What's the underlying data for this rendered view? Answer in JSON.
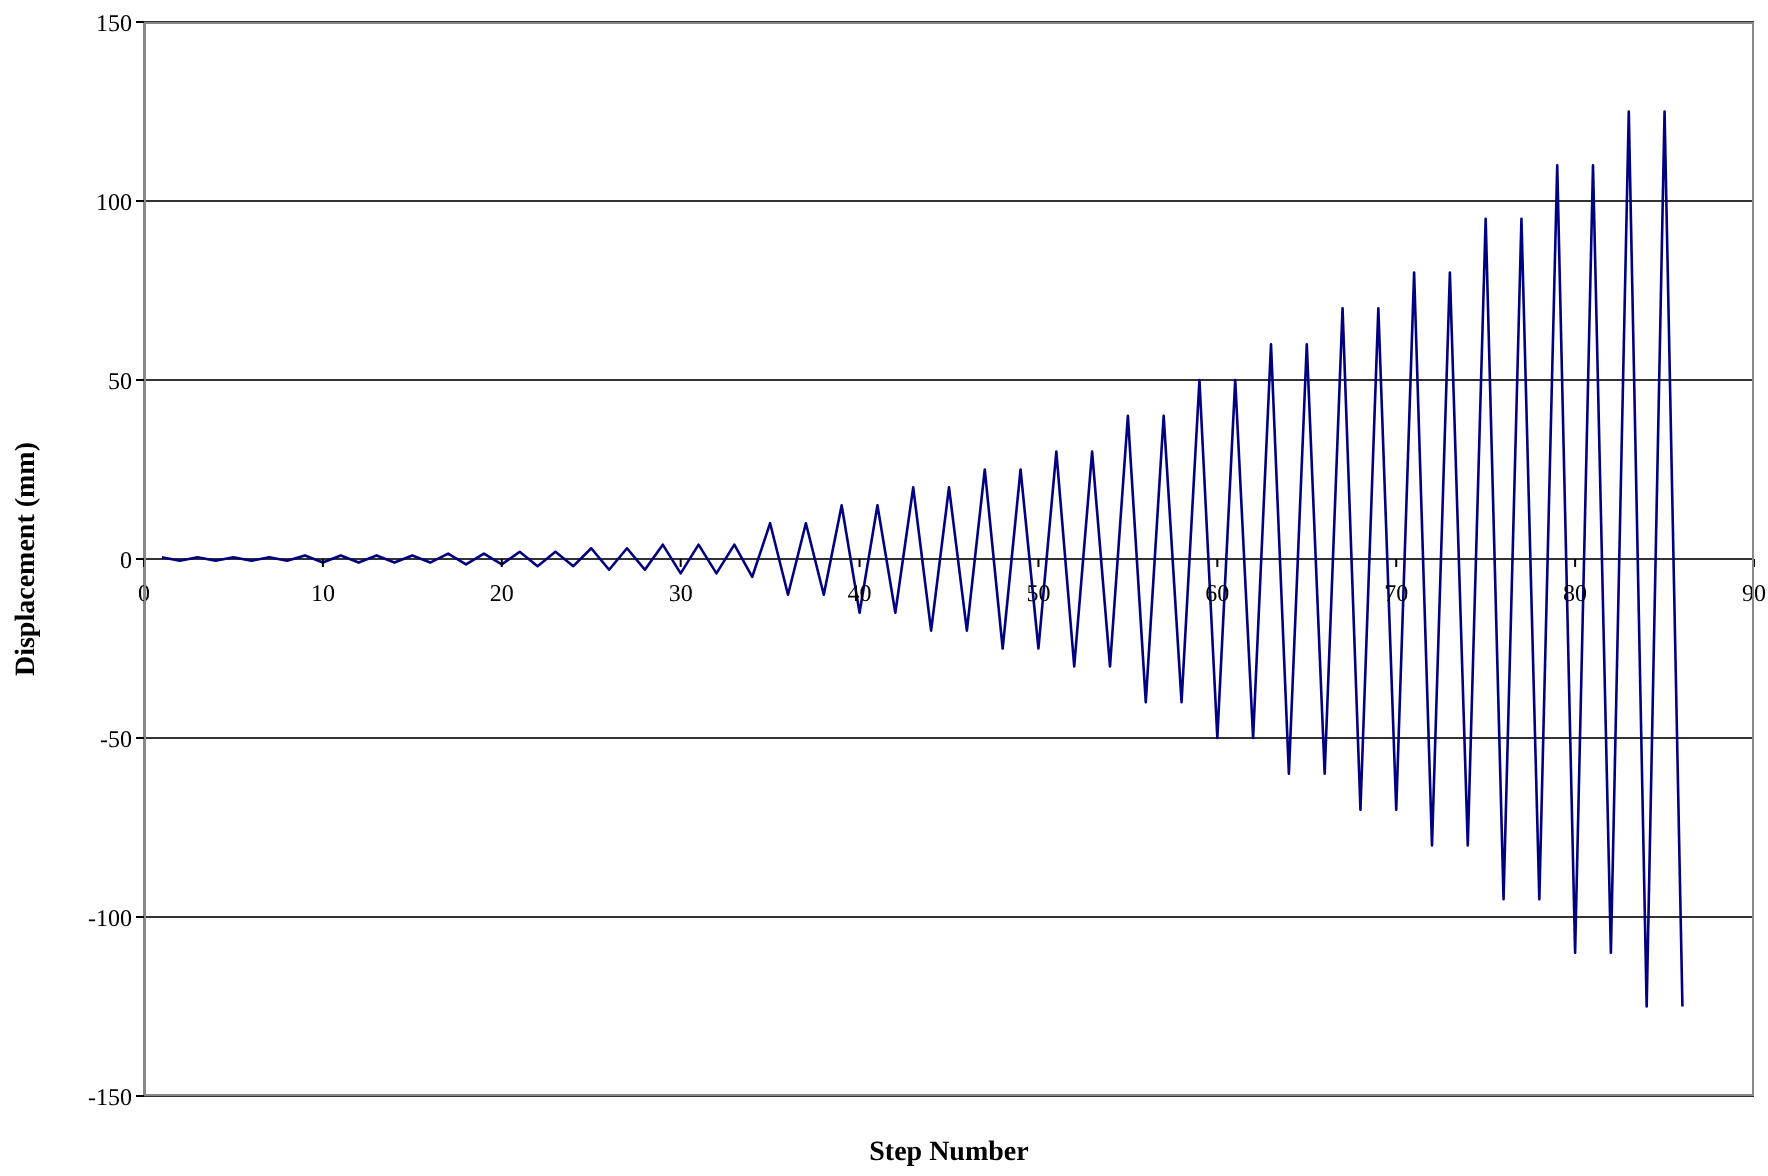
{
  "chart_data": {
    "type": "line",
    "xlabel": "Step Number",
    "ylabel": "Displacement (mm)",
    "x": [
      1,
      2,
      3,
      4,
      5,
      6,
      7,
      8,
      9,
      10,
      11,
      12,
      13,
      14,
      15,
      16,
      17,
      18,
      19,
      20,
      21,
      22,
      23,
      24,
      25,
      26,
      27,
      28,
      29,
      30,
      31,
      32,
      33,
      34,
      35,
      36,
      37,
      38,
      39,
      40,
      41,
      42,
      43,
      44,
      45,
      46,
      47,
      48,
      49,
      50,
      51,
      52,
      53,
      54,
      55,
      56,
      57,
      58,
      59,
      60,
      61,
      62,
      63,
      64,
      65,
      66,
      67,
      68,
      69,
      70,
      71,
      72,
      73,
      74,
      75,
      76,
      77,
      78,
      79,
      80,
      81,
      82,
      83,
      84,
      85,
      86
    ],
    "series": [
      {
        "color": "#000080",
        "values": [
          0.5,
          -0.5,
          0.5,
          -0.5,
          0.5,
          -0.5,
          0.5,
          -0.5,
          1,
          -1,
          1,
          -1,
          1,
          -1,
          1,
          -1,
          1.5,
          -1.5,
          1.5,
          -1.5,
          2,
          -2,
          2,
          -2,
          3,
          -3,
          3,
          -3,
          4,
          -4,
          4,
          -4,
          4,
          -5,
          10,
          -10,
          10,
          -10,
          15,
          -15,
          15,
          -15,
          20,
          -20,
          20,
          -20,
          25,
          -25,
          25,
          -25,
          30,
          -30,
          30,
          -30,
          40,
          -40,
          40,
          -40,
          50,
          -50,
          50,
          -50,
          60,
          -60,
          60,
          -60,
          70,
          -70,
          70,
          -70,
          80,
          -80,
          80,
          -80,
          95,
          -95,
          95,
          -95,
          110,
          -110,
          110,
          -110,
          125,
          -125,
          125,
          -125
        ]
      }
    ],
    "xlim": [
      0,
      90
    ],
    "xticks": [
      0,
      10,
      20,
      30,
      40,
      50,
      60,
      70,
      80,
      90
    ],
    "ylim": [
      -150,
      150
    ],
    "yticks": [
      -150,
      -100,
      -50,
      0,
      50,
      100,
      150
    ],
    "grid": "y",
    "marker": "none",
    "line_style": "solid"
  }
}
